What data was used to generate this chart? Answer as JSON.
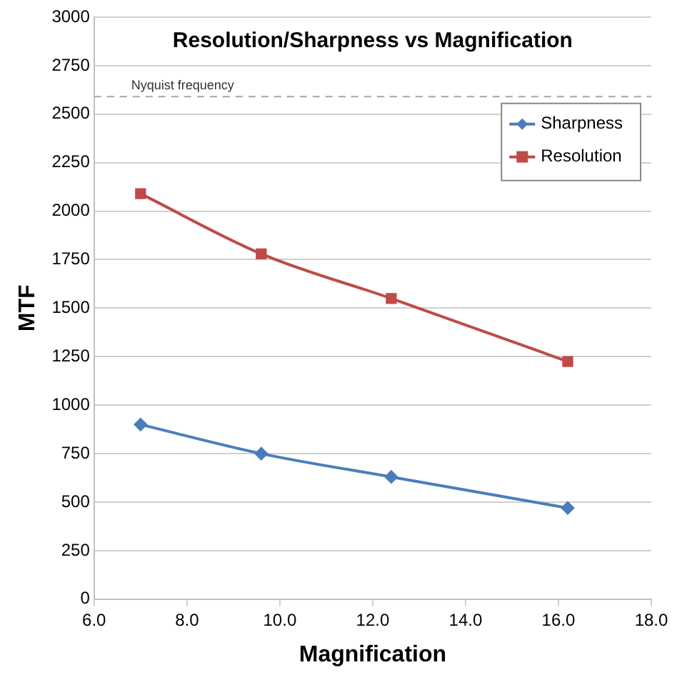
{
  "chart_data": {
    "type": "line",
    "title": "Resolution/Sharpness vs Magnification",
    "xlabel": "Magnification",
    "ylabel": "MTF",
    "xlim": [
      6,
      18
    ],
    "xticks": [
      {
        "value": 6,
        "label": "6.0"
      },
      {
        "value": 8,
        "label": "8.0"
      },
      {
        "value": 10,
        "label": "10.0"
      },
      {
        "value": 12,
        "label": "12.0"
      },
      {
        "value": 14,
        "label": "14.0"
      },
      {
        "value": 16,
        "label": "16.0"
      },
      {
        "value": 18,
        "label": "18.0"
      }
    ],
    "ylim": [
      0,
      3000
    ],
    "yticks": [
      0,
      250,
      500,
      750,
      1000,
      1250,
      1500,
      1750,
      2000,
      2250,
      2500,
      2750,
      3000
    ],
    "x": [
      7.0,
      9.6,
      12.4,
      16.2
    ],
    "series": [
      {
        "name": "Sharpness",
        "color": "#4a7ebb",
        "marker": "diamond",
        "values": [
          900,
          750,
          630,
          470
        ]
      },
      {
        "name": "Resolution",
        "color": "#be4b48",
        "marker": "square",
        "values": [
          2090,
          1780,
          1550,
          1225
        ]
      }
    ],
    "ref_lines": [
      {
        "axis": "y",
        "value": 2590,
        "label": "Nyquist frequency",
        "color": "#a6a6a6",
        "line_style": "dashed"
      }
    ],
    "grid": "y",
    "legend": "right"
  }
}
